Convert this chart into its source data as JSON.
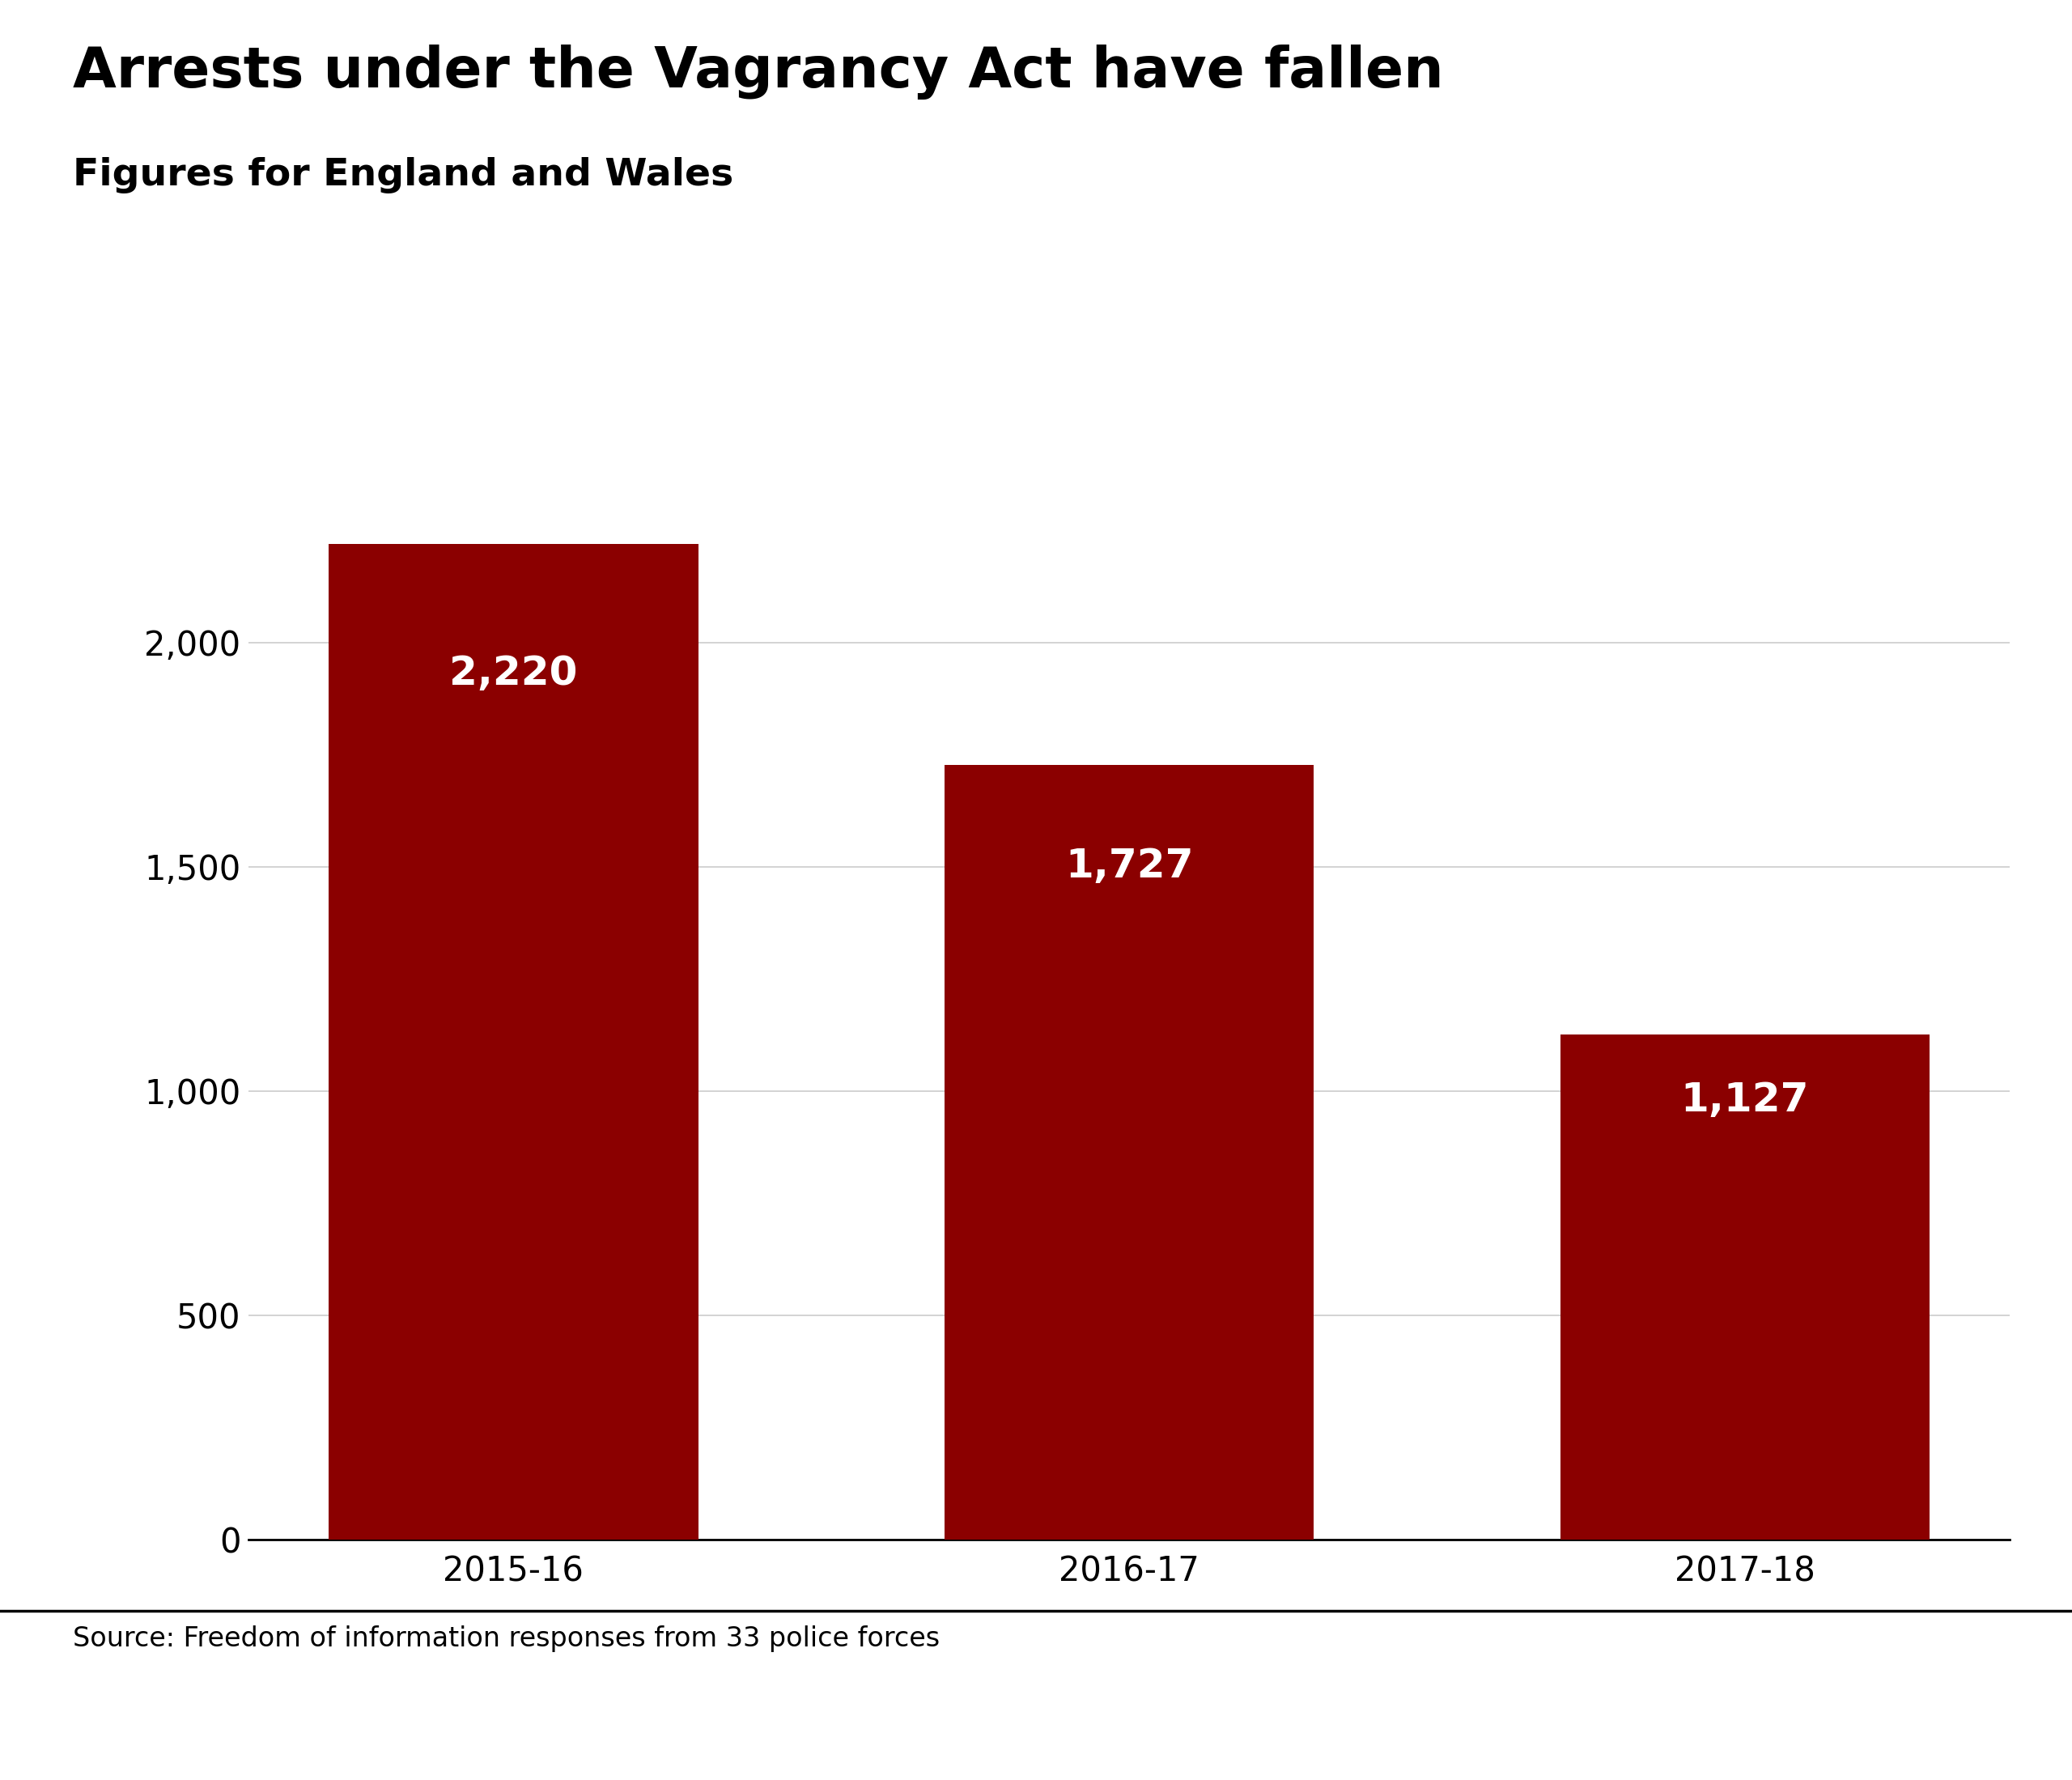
{
  "title": "Arrests under the Vagrancy Act have fallen",
  "subtitle": "Figures for England and Wales",
  "categories": [
    "2015-16",
    "2016-17",
    "2017-18"
  ],
  "values": [
    2220,
    1727,
    1127
  ],
  "bar_color": "#8B0000",
  "value_labels": [
    "2,220",
    "1,727",
    "1,127"
  ],
  "ylim": [
    0,
    2500
  ],
  "yticks": [
    0,
    500,
    1000,
    1500,
    2000
  ],
  "ytick_labels": [
    "0",
    "500",
    "1,000",
    "1,500",
    "2,000"
  ],
  "source_text": "Source: Freedom of information responses from 33 police forces",
  "background_color": "#ffffff",
  "title_fontsize": 50,
  "subtitle_fontsize": 34,
  "tick_fontsize": 30,
  "source_fontsize": 24,
  "bar_width": 0.6,
  "value_label_color": "#ffffff",
  "value_label_fontsize": 36,
  "grid_color": "#cccccc",
  "axis_color": "#000000",
  "footer_line_color": "#000000",
  "bbc_gray": "#666666"
}
